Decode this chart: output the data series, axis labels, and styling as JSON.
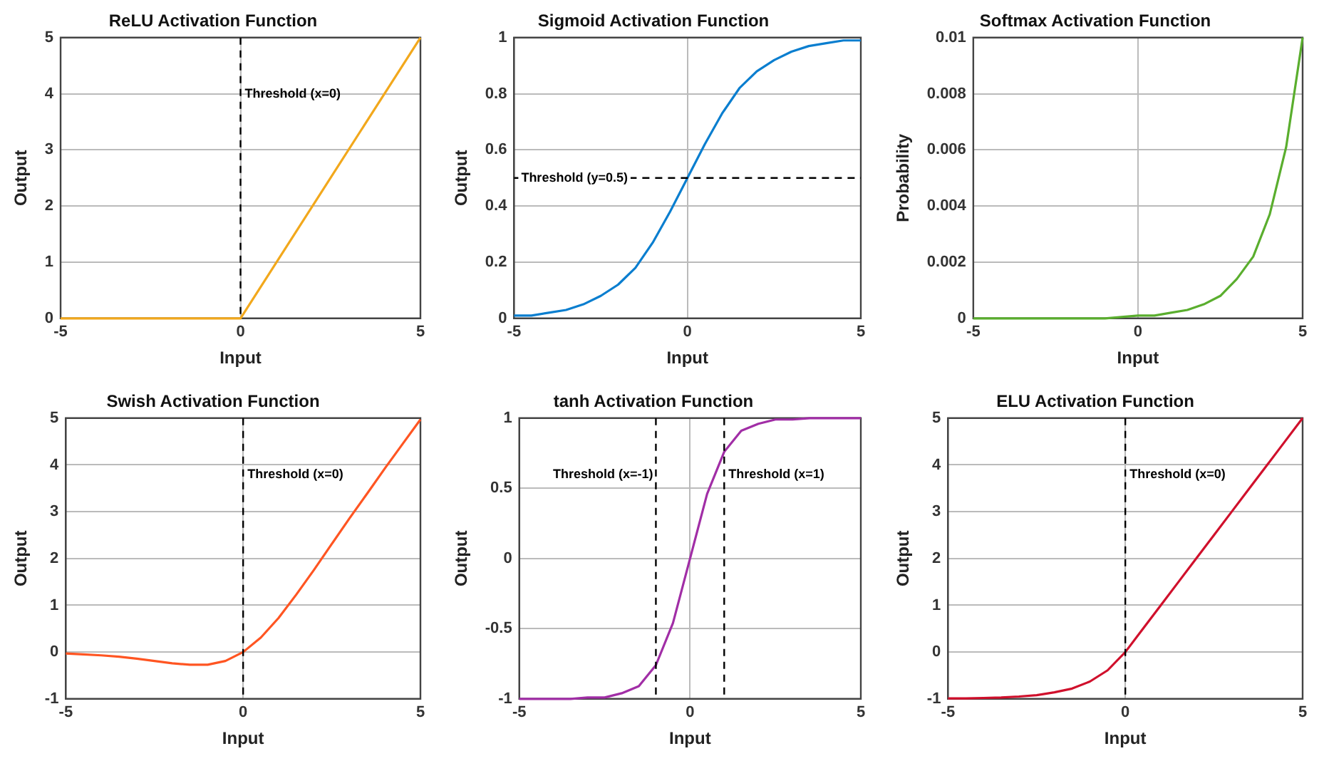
{
  "chart_data": [
    {
      "type": "line",
      "title": "ReLU Activation Function",
      "xlabel": "Input",
      "ylabel": "Output",
      "x": [
        -5,
        0,
        5
      ],
      "series": [
        {
          "color": "#f2a81c",
          "values": [
            0,
            0,
            5
          ]
        }
      ],
      "xlim": [
        -5,
        5
      ],
      "xticks": [
        -5,
        0,
        5
      ],
      "ylim": [
        0,
        5
      ],
      "yticks": [
        0,
        1,
        2,
        3,
        4,
        5
      ],
      "grid": true,
      "marker": "none",
      "ref_lines": [
        {
          "axis": "x",
          "value": 0,
          "label": "Threshold (x=0)",
          "color": "#000000",
          "line_style": "dashed"
        }
      ]
    },
    {
      "type": "line",
      "title": "Sigmoid Activation Function",
      "xlabel": "Input",
      "ylabel": "Output",
      "x": [
        -5,
        -4.5,
        -4,
        -3.5,
        -3,
        -2.5,
        -2,
        -1.5,
        -1,
        -0.5,
        0,
        0.5,
        1,
        1.5,
        2,
        2.5,
        3,
        3.5,
        4,
        4.5,
        5
      ],
      "series": [
        {
          "color": "#0a7ecf",
          "values": [
            0.01,
            0.01,
            0.02,
            0.03,
            0.05,
            0.08,
            0.12,
            0.18,
            0.27,
            0.38,
            0.5,
            0.62,
            0.73,
            0.82,
            0.88,
            0.92,
            0.95,
            0.97,
            0.98,
            0.99,
            0.99
          ]
        }
      ],
      "xlim": [
        -5,
        5
      ],
      "xticks": [
        -5,
        0,
        5
      ],
      "ylim": [
        0,
        1
      ],
      "yticks": [
        0,
        0.2,
        0.4,
        0.6,
        0.8,
        1
      ],
      "grid": true,
      "marker": "none",
      "ref_lines": [
        {
          "axis": "y",
          "value": 0.5,
          "label": "Threshold (y=0.5)",
          "color": "#000000",
          "line_style": "dashed"
        }
      ]
    },
    {
      "type": "line",
      "title": "Softmax Activation Function",
      "xlabel": "Input",
      "ylabel": "Probability",
      "x": [
        -5,
        -4,
        -3,
        -2,
        -1,
        0,
        0.5,
        1,
        1.5,
        2,
        2.5,
        3,
        3.5,
        4,
        4.5,
        5
      ],
      "series": [
        {
          "color": "#5aae2e",
          "values": [
            0,
            0,
            0,
            0,
            0,
            0.0001,
            0.0001,
            0.0002,
            0.0003,
            0.0005,
            0.0008,
            0.0014,
            0.0022,
            0.0037,
            0.0061,
            0.01
          ]
        }
      ],
      "xlim": [
        -5,
        5
      ],
      "xticks": [
        -5,
        0,
        5
      ],
      "ylim": [
        0,
        0.01
      ],
      "yticks": [
        0,
        0.002,
        0.004,
        0.006,
        0.008,
        0.01
      ],
      "grid": true,
      "marker": "none"
    },
    {
      "type": "line",
      "title": "Swish Activation Function",
      "xlabel": "Input",
      "ylabel": "Output",
      "x": [
        -5,
        -4.5,
        -4,
        -3.5,
        -3,
        -2.5,
        -2,
        -1.5,
        -1,
        -0.5,
        0,
        0.5,
        1,
        1.5,
        2,
        2.5,
        3,
        3.5,
        4,
        4.5,
        5
      ],
      "series": [
        {
          "color": "#ff5522",
          "values": [
            -0.03,
            -0.05,
            -0.07,
            -0.1,
            -0.14,
            -0.19,
            -0.24,
            -0.27,
            -0.27,
            -0.19,
            0,
            0.31,
            0.73,
            1.23,
            1.76,
            2.31,
            2.86,
            3.39,
            3.93,
            4.45,
            4.97
          ]
        }
      ],
      "xlim": [
        -5,
        5
      ],
      "xticks": [
        -5,
        0,
        5
      ],
      "ylim": [
        -1,
        5
      ],
      "yticks": [
        -1,
        0,
        1,
        2,
        3,
        4,
        5
      ],
      "grid": true,
      "marker": "none",
      "ref_lines": [
        {
          "axis": "x",
          "value": 0,
          "label": "Threshold (x=0)",
          "color": "#000000",
          "line_style": "dashed"
        }
      ]
    },
    {
      "type": "line",
      "title": "tanh Activation Function",
      "xlabel": "Input",
      "ylabel": "Output",
      "x": [
        -5,
        -4,
        -3.5,
        -3,
        -2.5,
        -2,
        -1.5,
        -1,
        -0.5,
        0,
        0.5,
        1,
        1.5,
        2,
        2.5,
        3,
        3.5,
        4,
        5
      ],
      "series": [
        {
          "color": "#a12ea6",
          "values": [
            -1,
            -1,
            -1,
            -0.99,
            -0.99,
            -0.96,
            -0.91,
            -0.76,
            -0.46,
            0,
            0.46,
            0.76,
            0.91,
            0.96,
            0.99,
            0.99,
            1,
            1,
            1
          ]
        }
      ],
      "xlim": [
        -5,
        5
      ],
      "xticks": [
        -5,
        0,
        5
      ],
      "ylim": [
        -1,
        1
      ],
      "yticks": [
        -1,
        -0.5,
        0,
        0.5,
        1
      ],
      "grid": true,
      "marker": "none",
      "ref_lines": [
        {
          "axis": "x",
          "value": -1,
          "label": "Threshold (x=-1)",
          "color": "#000000",
          "line_style": "dashed"
        },
        {
          "axis": "x",
          "value": 1,
          "label": "Threshold (x=1)",
          "color": "#000000",
          "line_style": "dashed"
        }
      ]
    },
    {
      "type": "line",
      "title": "ELU Activation Function",
      "xlabel": "Input",
      "ylabel": "Output",
      "x": [
        -5,
        -4.5,
        -4,
        -3.5,
        -3,
        -2.5,
        -2,
        -1.5,
        -1,
        -0.5,
        0,
        0.5,
        1,
        1.5,
        2,
        2.5,
        3,
        3.5,
        4,
        4.5,
        5
      ],
      "series": [
        {
          "color": "#d0102c",
          "values": [
            -0.99,
            -0.99,
            -0.98,
            -0.97,
            -0.95,
            -0.92,
            -0.86,
            -0.78,
            -0.63,
            -0.39,
            0,
            0.5,
            1,
            1.5,
            2,
            2.5,
            3,
            3.5,
            4,
            4.5,
            5
          ]
        }
      ],
      "xlim": [
        -5,
        5
      ],
      "xticks": [
        -5,
        0,
        5
      ],
      "ylim": [
        -1,
        5
      ],
      "yticks": [
        -1,
        0,
        1,
        2,
        3,
        4,
        5
      ],
      "grid": true,
      "marker": "none",
      "ref_lines": [
        {
          "axis": "x",
          "value": 0,
          "label": "Threshold (x=0)",
          "color": "#000000",
          "line_style": "dashed"
        }
      ]
    }
  ]
}
